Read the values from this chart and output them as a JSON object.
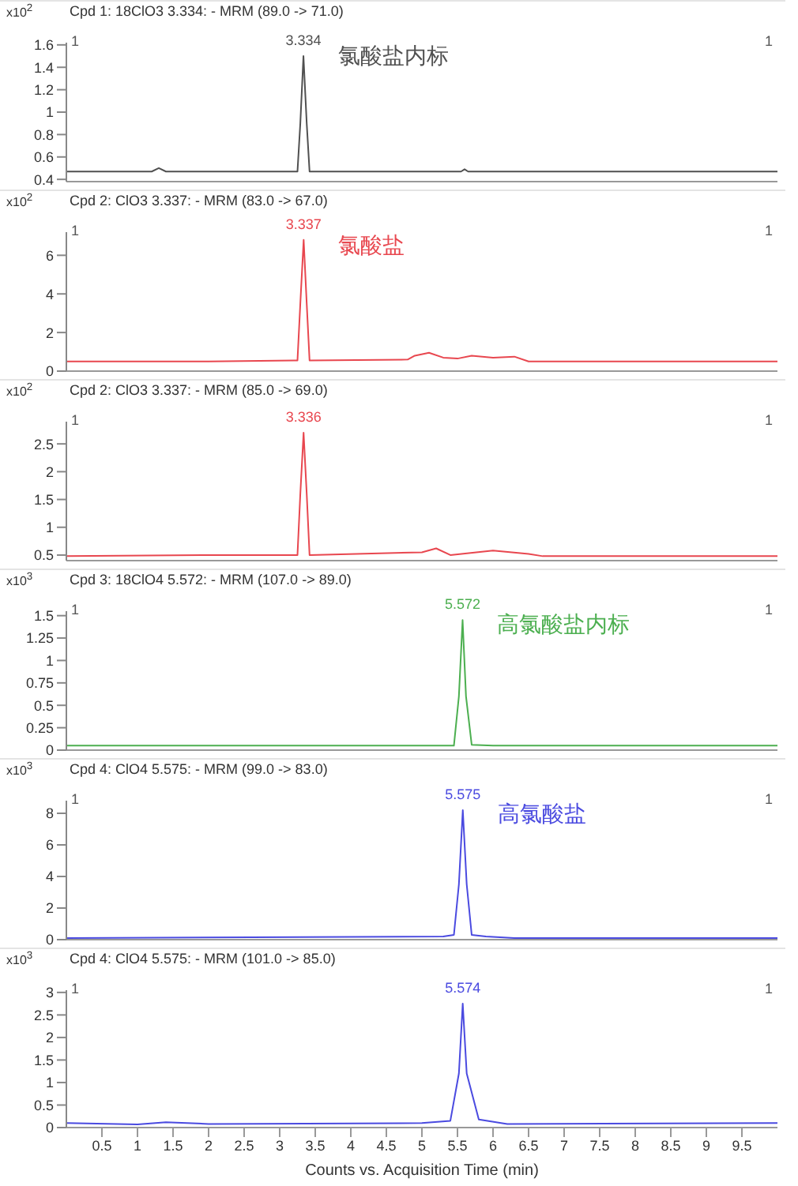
{
  "chart_data": [
    {
      "type": "line",
      "title": "Cpd 1: 18ClO3 3.334: - MRM (89.0 -> 71.0)",
      "ylabel": "x10$^{2}$",
      "xlim": [
        0,
        10
      ],
      "ylim": [
        0.38,
        1.62
      ],
      "yticks": [
        0.4,
        0.6,
        0.8,
        1,
        1.2,
        1.4,
        1.6
      ],
      "tick_labels": "y",
      "series": [
        {
          "color": "#505050",
          "x": [
            0,
            0.5,
            1.0,
            1.2,
            1.3,
            1.4,
            1.6,
            2.5,
            3.25,
            3.29,
            3.334,
            3.38,
            3.42,
            4.0,
            5.0,
            5.55,
            5.6,
            5.65,
            6.5,
            8,
            10
          ],
          "values": [
            0.47,
            0.47,
            0.47,
            0.47,
            0.5,
            0.47,
            0.47,
            0.47,
            0.47,
            0.9,
            1.5,
            0.9,
            0.47,
            0.47,
            0.47,
            0.47,
            0.49,
            0.47,
            0.47,
            0.47,
            0.47
          ]
        }
      ],
      "annotations": [
        "1",
        "1",
        "氯酸盐内标",
        {
          "text": "3.334",
          "x": 3.334,
          "y": 1.5
        }
      ]
    },
    {
      "type": "line",
      "title": "Cpd 2: ClO3 3.337: - MRM (83.0 -> 67.0)",
      "ylabel": "x10$^{2}$",
      "xlim": [
        0,
        10
      ],
      "ylim": [
        0,
        7.2
      ],
      "yticks": [
        0,
        2,
        4,
        6
      ],
      "tick_labels": "y",
      "series": [
        {
          "color": "#e8474f",
          "x": [
            0,
            2,
            3.2,
            3.25,
            3.29,
            3.337,
            3.38,
            3.42,
            4.8,
            4.9,
            5.1,
            5.3,
            5.5,
            5.7,
            6,
            6.3,
            6.5,
            8,
            10
          ],
          "values": [
            0.5,
            0.5,
            0.55,
            0.55,
            3.5,
            6.8,
            3.5,
            0.55,
            0.6,
            0.8,
            0.95,
            0.7,
            0.65,
            0.8,
            0.7,
            0.75,
            0.5,
            0.5,
            0.5
          ]
        }
      ],
      "annotations": [
        "1",
        "1",
        "氯酸盐",
        {
          "text": "3.337",
          "x": 3.337,
          "y": 6.8
        }
      ]
    },
    {
      "type": "line",
      "title": "Cpd 2: ClO3 3.337: - MRM (85.0 -> 69.0)",
      "ylabel": "x10$^{2}$",
      "xlim": [
        0,
        10
      ],
      "ylim": [
        0.4,
        2.9
      ],
      "yticks": [
        0.5,
        1,
        1.5,
        2,
        2.5
      ],
      "tick_labels": "y",
      "series": [
        {
          "color": "#e8474f",
          "x": [
            0,
            2,
            3.25,
            3.29,
            3.336,
            3.38,
            3.42,
            5.0,
            5.2,
            5.4,
            6.0,
            6.5,
            6.7,
            10
          ],
          "values": [
            0.48,
            0.5,
            0.5,
            1.6,
            2.7,
            1.6,
            0.5,
            0.55,
            0.62,
            0.5,
            0.58,
            0.52,
            0.48,
            0.48
          ]
        }
      ],
      "annotations": [
        "1",
        "1",
        {
          "text": "3.336",
          "x": 3.336,
          "y": 2.7
        }
      ]
    },
    {
      "type": "line",
      "title": "Cpd 3: 18ClO4 5.572: - MRM (107.0 -> 89.0)",
      "ylabel": "x10$^{3}$",
      "xlim": [
        0,
        10
      ],
      "ylim": [
        0,
        1.55
      ],
      "yticks": [
        0,
        0.25,
        0.5,
        0.75,
        1,
        1.25,
        1.5
      ],
      "tick_labels": "y",
      "series": [
        {
          "color": "#4caf50",
          "x": [
            0,
            5.45,
            5.52,
            5.572,
            5.62,
            5.7,
            6,
            10
          ],
          "values": [
            0.05,
            0.05,
            0.6,
            1.45,
            0.6,
            0.06,
            0.05,
            0.05
          ]
        }
      ],
      "annotations": [
        "1",
        "1",
        "高氯酸盐内标",
        {
          "text": "5.572",
          "x": 5.572,
          "y": 1.45
        }
      ]
    },
    {
      "type": "line",
      "title": "Cpd 4: ClO4 5.575: - MRM (99.0 -> 83.0)",
      "ylabel": "x10$^{3}$",
      "xlim": [
        0,
        10
      ],
      "ylim": [
        0,
        8.8
      ],
      "yticks": [
        0,
        2,
        4,
        6,
        8
      ],
      "tick_labels": "y",
      "series": [
        {
          "color": "#4a4ae0",
          "x": [
            0,
            5.3,
            5.45,
            5.52,
            5.575,
            5.63,
            5.7,
            5.9,
            6.3,
            10
          ],
          "values": [
            0.1,
            0.2,
            0.3,
            3.5,
            8.2,
            3.5,
            0.3,
            0.2,
            0.1,
            0.1
          ]
        }
      ],
      "annotations": [
        "1",
        "1",
        "高氯酸盐",
        {
          "text": "5.575",
          "x": 5.575,
          "y": 8.2
        }
      ]
    },
    {
      "type": "line",
      "title": "Cpd 4: ClO4 5.575: - MRM (101.0 -> 85.0)",
      "ylabel": "x10$^{3}$",
      "xlabel": "Counts vs. Acquisition Time (min)",
      "xlim": [
        0,
        10
      ],
      "xticks": [
        0.5,
        1,
        1.5,
        2,
        2.5,
        3,
        3.5,
        4,
        4.5,
        5,
        5.5,
        6,
        6.5,
        7,
        7.5,
        8,
        8.5,
        9,
        9.5
      ],
      "ylim": [
        0,
        3.05
      ],
      "yticks": [
        0,
        0.5,
        1,
        1.5,
        2,
        2.5,
        3
      ],
      "series": [
        {
          "color": "#4a4ae0",
          "x": [
            0,
            1,
            1.4,
            2,
            5.0,
            5.4,
            5.52,
            5.574,
            5.63,
            5.8,
            6.2,
            10
          ],
          "values": [
            0.1,
            0.07,
            0.12,
            0.08,
            0.1,
            0.15,
            1.2,
            2.75,
            1.2,
            0.18,
            0.08,
            0.1
          ]
        }
      ],
      "annotations": [
        "1",
        "1",
        {
          "text": "5.574",
          "x": 5.574,
          "y": 2.75
        }
      ]
    }
  ]
}
